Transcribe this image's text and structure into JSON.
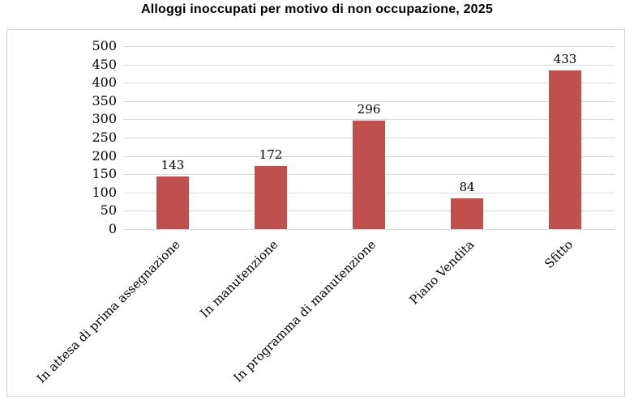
{
  "title": "Alloggi inoccupati per motivo di non occupazione, 2025",
  "chart_data": {
    "type": "bar",
    "title": "Alloggi inoccupati per motivo di non occupazione, 2025",
    "categories": [
      "In attesa di prima assegnazione",
      "In manutenzione",
      "In programma di manutenzione",
      "Piano Vendita",
      "Sfitto"
    ],
    "values": [
      143,
      172,
      296,
      84,
      433
    ],
    "data_labels": [
      "143",
      "172",
      "296",
      "84",
      "433"
    ],
    "xlabel": "",
    "ylabel": "",
    "ylim": [
      0,
      500
    ],
    "yticks": [
      0,
      50,
      100,
      150,
      200,
      250,
      300,
      350,
      400,
      450,
      500
    ],
    "grid": true,
    "legend": false,
    "category_label_rotation_deg": 45,
    "colors": {
      "bar": "#C0504D",
      "gridline": "#D9D9D9",
      "frame_border": "#D2D2D2",
      "text": "#000000",
      "background": "#FFFFFF"
    }
  }
}
